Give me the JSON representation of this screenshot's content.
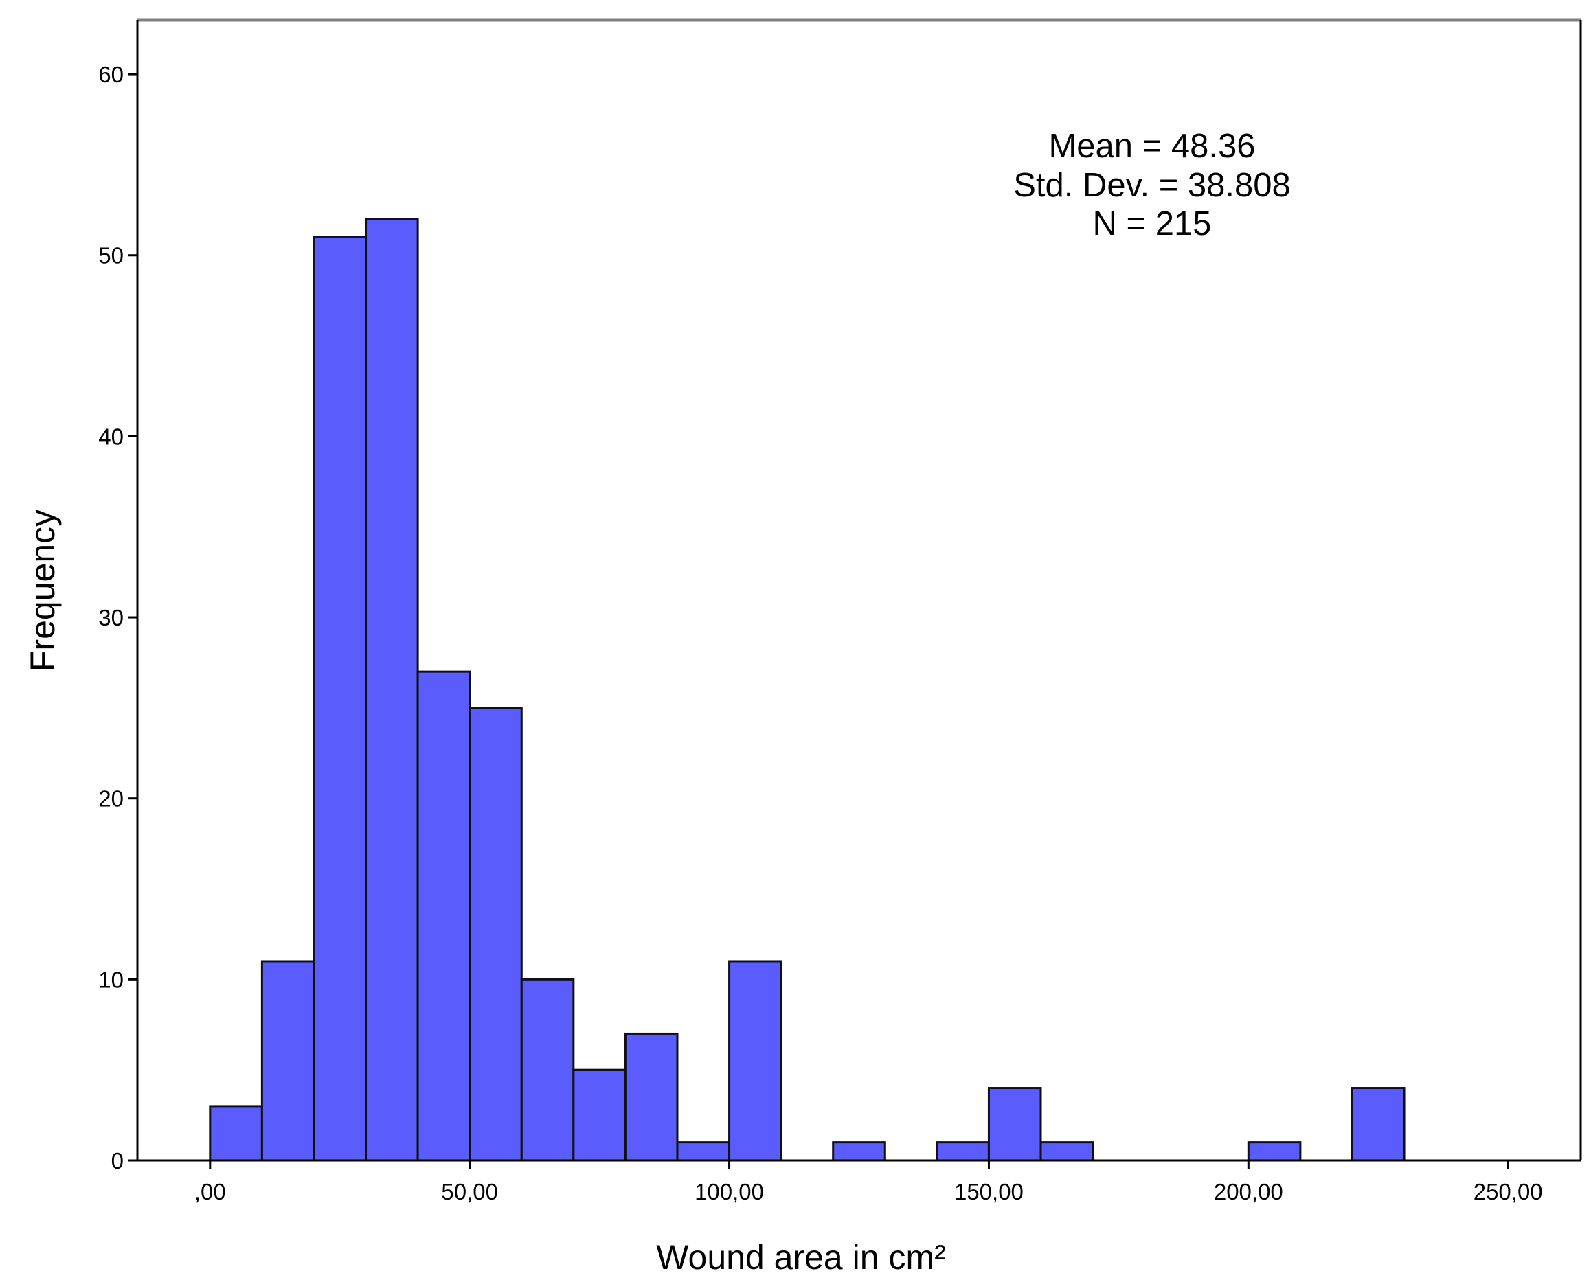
{
  "chart_data": {
    "type": "bar",
    "title": "",
    "xlabel": "Wound area in cm²",
    "ylabel": "Frequency",
    "bin_width": 10,
    "bins": [
      {
        "start": 0,
        "end": 10,
        "count": 3
      },
      {
        "start": 10,
        "end": 20,
        "count": 11
      },
      {
        "start": 20,
        "end": 30,
        "count": 51
      },
      {
        "start": 30,
        "end": 40,
        "count": 52
      },
      {
        "start": 40,
        "end": 50,
        "count": 27
      },
      {
        "start": 50,
        "end": 60,
        "count": 25
      },
      {
        "start": 60,
        "end": 70,
        "count": 10
      },
      {
        "start": 70,
        "end": 80,
        "count": 5
      },
      {
        "start": 80,
        "end": 90,
        "count": 7
      },
      {
        "start": 90,
        "end": 100,
        "count": 1
      },
      {
        "start": 100,
        "end": 110,
        "count": 11
      },
      {
        "start": 120,
        "end": 130,
        "count": 1
      },
      {
        "start": 140,
        "end": 150,
        "count": 1
      },
      {
        "start": 150,
        "end": 160,
        "count": 4
      },
      {
        "start": 160,
        "end": 170,
        "count": 1
      },
      {
        "start": 200,
        "end": 210,
        "count": 1
      },
      {
        "start": 220,
        "end": 230,
        "count": 4
      }
    ],
    "xlim": [
      -14,
      264
    ],
    "ylim": [
      0,
      63
    ],
    "x_ticks": [
      {
        "value": 0,
        "label": ",00"
      },
      {
        "value": 50,
        "label": "50,00"
      },
      {
        "value": 100,
        "label": "100,00"
      },
      {
        "value": 150,
        "label": "150,00"
      },
      {
        "value": 200,
        "label": "200,00"
      },
      {
        "value": 250,
        "label": "250,00"
      }
    ],
    "y_ticks": [
      {
        "value": 0,
        "label": "0"
      },
      {
        "value": 10,
        "label": "10"
      },
      {
        "value": 20,
        "label": "20"
      },
      {
        "value": 30,
        "label": "30"
      },
      {
        "value": 40,
        "label": "40"
      },
      {
        "value": 50,
        "label": "50"
      },
      {
        "value": 60,
        "label": "60"
      }
    ],
    "stats": {
      "mean": "Mean = 48.36",
      "std": "Std. Dev. = 38.808",
      "n": "N = 215"
    },
    "legend": "none",
    "grid": false,
    "colors": {
      "bar_fill": "#5a5cfc",
      "bar_edge": "#111111",
      "frame": "#000000",
      "frame_top": "#808080"
    }
  }
}
